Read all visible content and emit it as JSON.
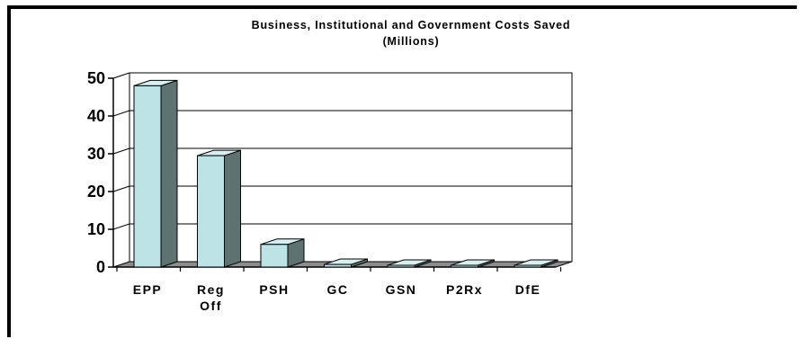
{
  "chart_data": {
    "type": "bar",
    "title": "Business, Institutional and Government Costs Saved",
    "subtitle": "(Millions)",
    "categories": [
      "EPP",
      "Reg Off",
      "PSH",
      "GC",
      "GSN",
      "P2Rx",
      "DfE"
    ],
    "category_lines": [
      [
        "EPP"
      ],
      [
        "Reg",
        "Off"
      ],
      [
        "PSH"
      ],
      [
        "GC"
      ],
      [
        "GSN"
      ],
      [
        "P2Rx"
      ],
      [
        "DfE"
      ]
    ],
    "values": [
      48,
      29.5,
      6,
      0.7,
      0,
      0,
      0
    ],
    "ylim": [
      0,
      50
    ],
    "yticks": [
      "0",
      "10",
      "20",
      "30",
      "40",
      "50"
    ],
    "grid": true,
    "style": "3d",
    "colors": {
      "bar_front": "#bde3e6",
      "bar_side": "#5f7272",
      "bar_top": "#d9eef0",
      "floor": "#8c8c8c",
      "grid": "#000000"
    }
  }
}
